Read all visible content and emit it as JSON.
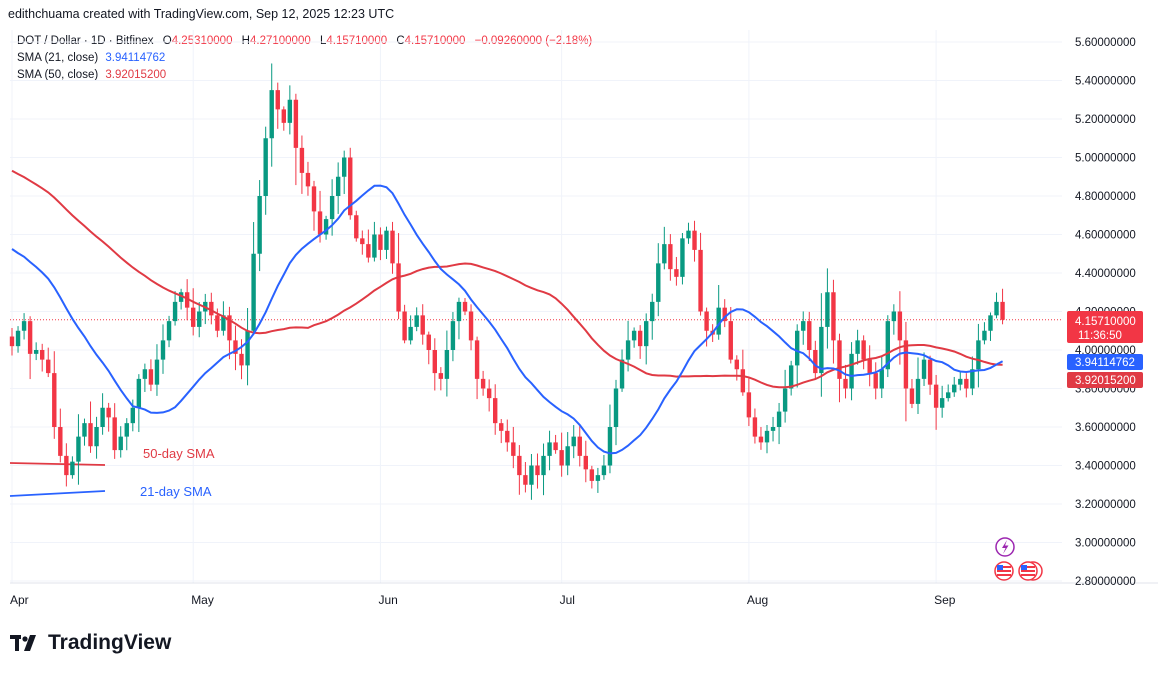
{
  "header": {
    "credit": "edithchuama created with TradingView.com, Sep 12, 2025 12:23 UTC"
  },
  "legend": {
    "symbol": "DOT / Dollar · 1D · Bitfinex",
    "o_label": "O",
    "o_value": "4.25310000",
    "h_label": "H",
    "h_value": "4.27100000",
    "l_label": "L",
    "l_value": "4.15710000",
    "c_label": "C",
    "c_value": "4.15710000",
    "change": "−0.09260000 (−2.18%)",
    "sma21_label": "SMA (21, close)",
    "sma21_value": "3.94114762",
    "sma50_label": "SMA (50, close)",
    "sma50_value": "3.92015200"
  },
  "annotations": {
    "sma50_text": "50-day SMA",
    "sma21_text": "21-day SMA"
  },
  "price_tags": {
    "last": "4.15710000",
    "countdown": "11:36:50",
    "sma21": "3.94114762",
    "sma50": "3.92015200"
  },
  "footer": {
    "brand": "TradingView"
  },
  "colors": {
    "up": "#089981",
    "down": "#f23645",
    "sma21": "#2962ff",
    "sma50": "#e03a44",
    "grid": "#f0f3fa"
  },
  "chart_data": {
    "type": "candlestick",
    "ylim": [
      2.8,
      5.6
    ],
    "y_ticks": [
      "5.60000000",
      "5.40000000",
      "5.20000000",
      "5.00000000",
      "4.80000000",
      "4.60000000",
      "4.40000000",
      "4.20000000",
      "4.00000000",
      "3.80000000",
      "3.60000000",
      "3.40000000",
      "3.20000000",
      "3.00000000",
      "2.80000000"
    ],
    "x_labels": [
      {
        "label": "Apr",
        "day": 0
      },
      {
        "label": "May",
        "day": 30
      },
      {
        "label": "Jun",
        "day": 61
      },
      {
        "label": "Jul",
        "day": 91
      },
      {
        "label": "Aug",
        "day": 122
      },
      {
        "label": "Sep",
        "day": 153
      }
    ],
    "closes": [
      4.02,
      4.1,
      4.15,
      3.98,
      4.0,
      3.95,
      3.88,
      3.6,
      3.45,
      3.35,
      3.42,
      3.55,
      3.62,
      3.5,
      3.6,
      3.7,
      3.65,
      3.48,
      3.55,
      3.62,
      3.7,
      3.85,
      3.9,
      3.82,
      3.95,
      4.05,
      4.15,
      4.25,
      4.3,
      4.22,
      4.12,
      4.2,
      4.25,
      4.18,
      4.1,
      4.18,
      4.05,
      3.98,
      3.92,
      4.1,
      4.5,
      4.8,
      5.1,
      5.35,
      5.25,
      5.18,
      5.3,
      5.05,
      4.92,
      4.85,
      4.72,
      4.6,
      4.68,
      4.8,
      4.9,
      5.0,
      4.7,
      4.58,
      4.55,
      4.48,
      4.6,
      4.52,
      4.62,
      4.45,
      4.2,
      4.05,
      4.12,
      4.18,
      4.08,
      4.0,
      3.88,
      3.85,
      4.0,
      4.15,
      4.25,
      4.2,
      4.05,
      3.85,
      3.8,
      3.75,
      3.62,
      3.58,
      3.52,
      3.45,
      3.35,
      3.3,
      3.4,
      3.35,
      3.45,
      3.52,
      3.48,
      3.4,
      3.5,
      3.55,
      3.45,
      3.38,
      3.32,
      3.35,
      3.4,
      3.6,
      3.8,
      3.95,
      4.05,
      4.1,
      4.02,
      4.15,
      4.25,
      4.45,
      4.55,
      4.42,
      4.38,
      4.58,
      4.62,
      4.52,
      4.2,
      4.1,
      4.08,
      4.22,
      4.15,
      3.95,
      3.9,
      3.78,
      3.65,
      3.55,
      3.52,
      3.58,
      3.6,
      3.68,
      3.8,
      3.92,
      4.1,
      4.15,
      4.0,
      3.88,
      4.12,
      4.3,
      4.05,
      3.85,
      3.8,
      3.98,
      4.05,
      3.95,
      3.88,
      3.8,
      3.9,
      4.15,
      4.2,
      4.05,
      3.8,
      3.72,
      3.85,
      3.95,
      3.82,
      3.7,
      3.75,
      3.78,
      3.82,
      3.85,
      3.8,
      3.9,
      4.05,
      4.1,
      4.18,
      4.25,
      4.157
    ]
  }
}
